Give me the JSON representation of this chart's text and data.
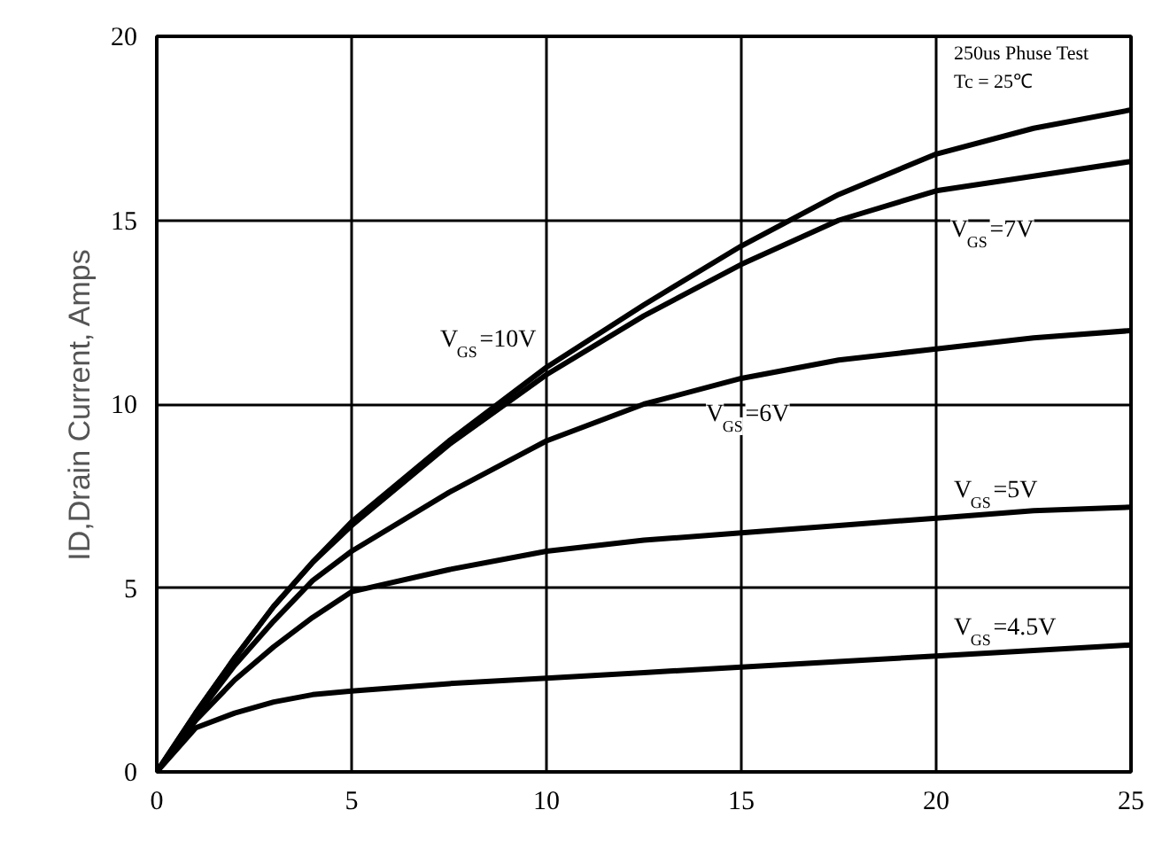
{
  "chart_data": {
    "type": "line",
    "ylabel": "ID,Drain Current, Amps",
    "x": [
      0,
      1,
      2,
      3,
      4,
      5,
      7.5,
      10,
      12.5,
      15,
      17.5,
      20,
      22.5,
      25
    ],
    "series": [
      {
        "name": "V$_{GS}$=10V",
        "color": "#000000",
        "values": [
          0,
          1.6,
          3.1,
          4.5,
          5.7,
          6.8,
          9.0,
          11.0,
          12.7,
          14.3,
          15.7,
          16.8,
          17.5,
          18.0
        ]
      },
      {
        "name": "V$_{GS}$=7V",
        "color": "#000000",
        "values": [
          0,
          1.6,
          3.1,
          4.5,
          5.7,
          6.7,
          8.9,
          10.8,
          12.4,
          13.8,
          15.0,
          15.8,
          16.2,
          16.6
        ]
      },
      {
        "name": "V$_{GS}$=6V",
        "color": "#000000",
        "values": [
          0,
          1.5,
          2.9,
          4.1,
          5.2,
          6.0,
          7.6,
          9.0,
          10.0,
          10.7,
          11.2,
          11.5,
          11.8,
          12.0
        ]
      },
      {
        "name": "V$_{GS}$=5V",
        "color": "#000000",
        "values": [
          0,
          1.4,
          2.5,
          3.4,
          4.2,
          4.9,
          5.5,
          6.0,
          6.3,
          6.5,
          6.7,
          6.9,
          7.1,
          7.2
        ]
      },
      {
        "name": "V$_{GS}$=4.5V",
        "color": "#000000",
        "values": [
          0,
          1.2,
          1.6,
          1.9,
          2.1,
          2.2,
          2.4,
          2.55,
          2.7,
          2.85,
          3.0,
          3.15,
          3.3,
          3.45
        ]
      }
    ],
    "xlim": [
      0,
      25
    ],
    "ylim": [
      0,
      20
    ],
    "xticks": [
      0,
      5,
      10,
      15,
      20,
      25
    ],
    "yticks": [
      0,
      5,
      10,
      15,
      20
    ],
    "grid": true,
    "marker": "none",
    "line_style": "solid",
    "annotations": [
      "250us Phuse Test",
      "Tc = 25℃"
    ]
  }
}
